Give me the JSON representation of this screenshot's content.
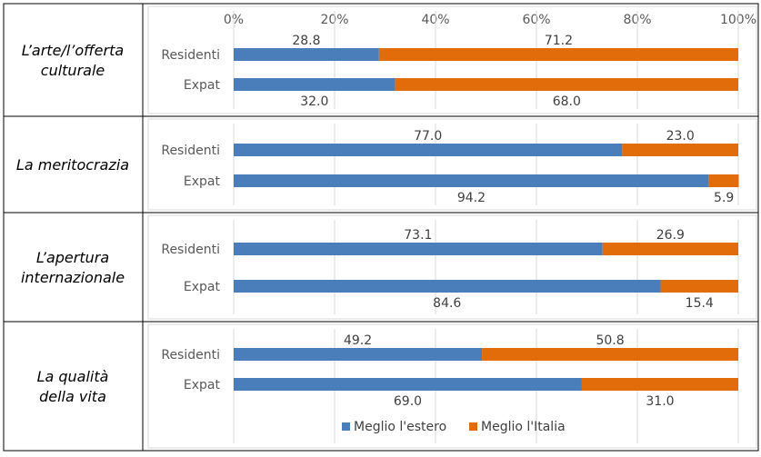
{
  "chart_data": {
    "type": "bar",
    "stacked": true,
    "orientation": "horizontal",
    "percent_stacked": true,
    "x_ticks": [
      "0%",
      "20%",
      "40%",
      "60%",
      "80%",
      "100%"
    ],
    "xlim": [
      0,
      100
    ],
    "grid": true,
    "legend_position": "bottom",
    "legend": [
      {
        "name": "Meglio l'estero",
        "color": "#4a7ebb"
      },
      {
        "name": "Meglio l'Italia",
        "color": "#e36c0a"
      }
    ],
    "panels": [
      {
        "category": "L’arte/l’offerta culturale",
        "rows": [
          {
            "label": "Residenti",
            "values": [
              28.8,
              71.2
            ],
            "value_labels": [
              "28.8",
              "71.2"
            ]
          },
          {
            "label": "Expat",
            "values": [
              32.0,
              68.0
            ],
            "value_labels": [
              "32.0",
              "68.0"
            ]
          }
        ]
      },
      {
        "category": "La meritocrazia",
        "rows": [
          {
            "label": "Residenti",
            "values": [
              77.0,
              23.0
            ],
            "value_labels": [
              "77.0",
              "23.0"
            ]
          },
          {
            "label": "Expat",
            "values": [
              94.2,
              5.9
            ],
            "value_labels": [
              "94.2",
              "5.9"
            ]
          }
        ]
      },
      {
        "category": "L’apertura internazionale",
        "rows": [
          {
            "label": "Residenti",
            "values": [
              73.1,
              26.9
            ],
            "value_labels": [
              "73.1",
              "26.9"
            ]
          },
          {
            "label": "Expat",
            "values": [
              84.6,
              15.4
            ],
            "value_labels": [
              "84.6",
              "15.4"
            ]
          }
        ]
      },
      {
        "category": "La qualità della vita",
        "rows": [
          {
            "label": "Residenti",
            "values": [
              49.2,
              50.8
            ],
            "value_labels": [
              "49.2",
              "50.8"
            ]
          },
          {
            "label": "Expat",
            "values": [
              69.0,
              31.0
            ],
            "value_labels": [
              "69.0",
              "31.0"
            ]
          }
        ]
      }
    ]
  }
}
